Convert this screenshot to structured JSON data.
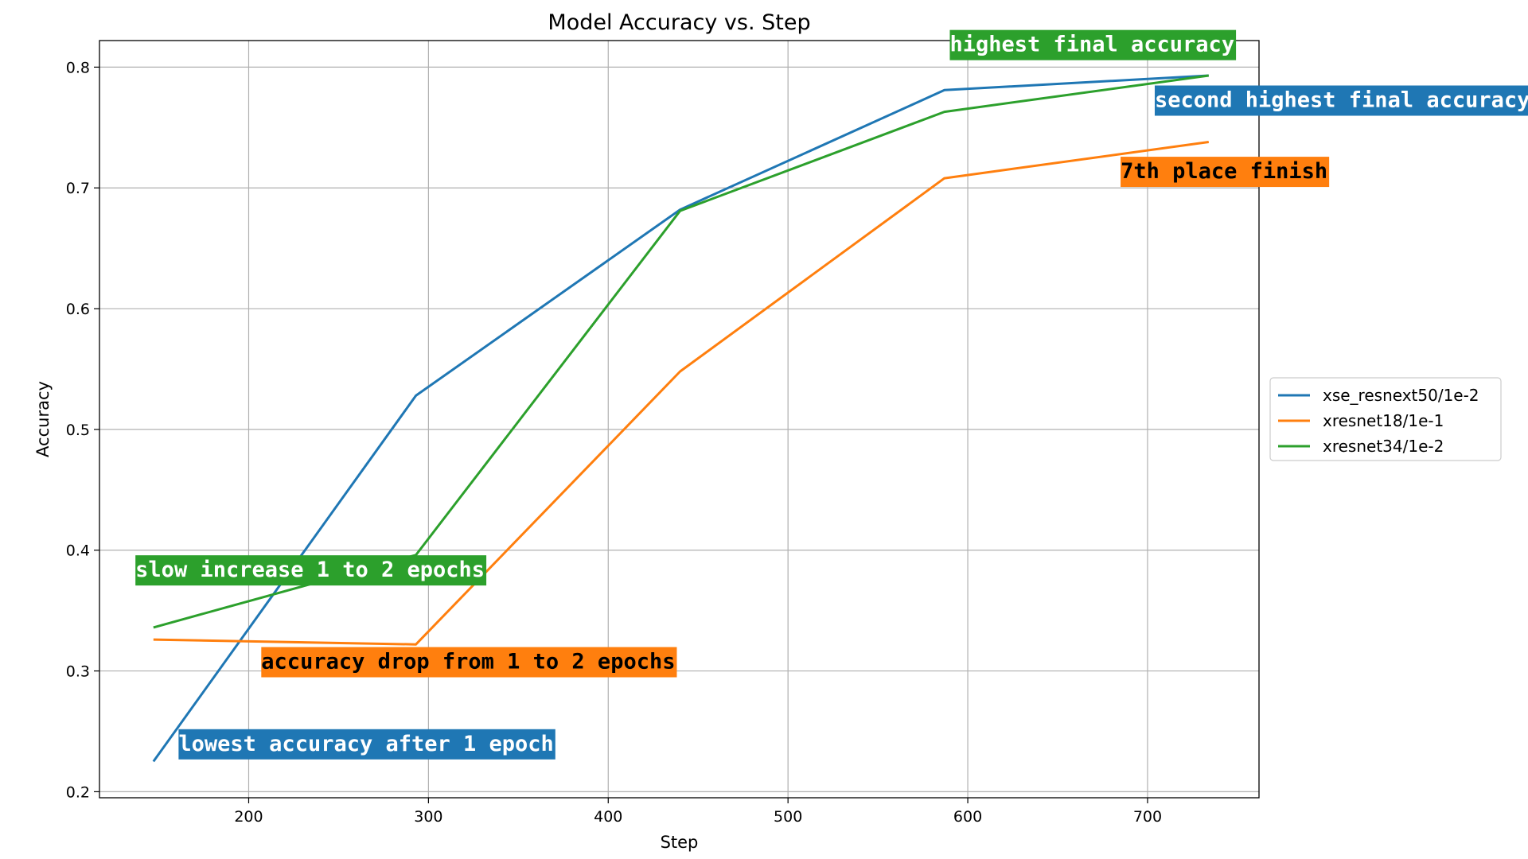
{
  "chart_data": {
    "type": "line",
    "title": "Model Accuracy vs. Step",
    "xlabel": "Step",
    "ylabel": "Accuracy",
    "xlim": [
      117,
      762
    ],
    "ylim": [
      0.195,
      0.822
    ],
    "xticks": [
      200,
      300,
      400,
      500,
      600,
      700
    ],
    "yticks": [
      0.2,
      0.3,
      0.4,
      0.5,
      0.6,
      0.7,
      0.8
    ],
    "grid": true,
    "legend_position": "center-right",
    "series": [
      {
        "name": "xse_resnext50/1e-2",
        "color": "#1f77b4",
        "x": [
          147,
          293,
          440,
          587,
          734
        ],
        "y": [
          0.225,
          0.528,
          0.682,
          0.781,
          0.793
        ]
      },
      {
        "name": "xresnet18/1e-1",
        "color": "#ff7f0e",
        "x": [
          147,
          293,
          440,
          587,
          734
        ],
        "y": [
          0.326,
          0.322,
          0.548,
          0.708,
          0.738
        ]
      },
      {
        "name": "xresnet34/1e-2",
        "color": "#2ca02c",
        "x": [
          147,
          293,
          440,
          587,
          734
        ],
        "y": [
          0.336,
          0.396,
          0.681,
          0.763,
          0.793
        ]
      }
    ],
    "annotations": [
      {
        "text": "highest final accuracy",
        "x": 590,
        "y": 0.813,
        "bg": "#2ca02c",
        "fg": "#ffffff"
      },
      {
        "text": "second highest final accuracy",
        "x": 704,
        "y": 0.767,
        "bg": "#1f77b4",
        "fg": "#ffffff"
      },
      {
        "text": "7th place finish",
        "x": 685,
        "y": 0.708,
        "bg": "#ff7f0e",
        "fg": "#000000"
      },
      {
        "text": "slow increase 1 to 2 epochs",
        "x": 137,
        "y": 0.378,
        "bg": "#2ca02c",
        "fg": "#ffffff"
      },
      {
        "text": "accuracy drop from 1 to 2 epochs",
        "x": 207,
        "y": 0.302,
        "bg": "#ff7f0e",
        "fg": "#000000"
      },
      {
        "text": "lowest accuracy after 1 epoch",
        "x": 161,
        "y": 0.234,
        "bg": "#1f77b4",
        "fg": "#ffffff"
      }
    ]
  }
}
